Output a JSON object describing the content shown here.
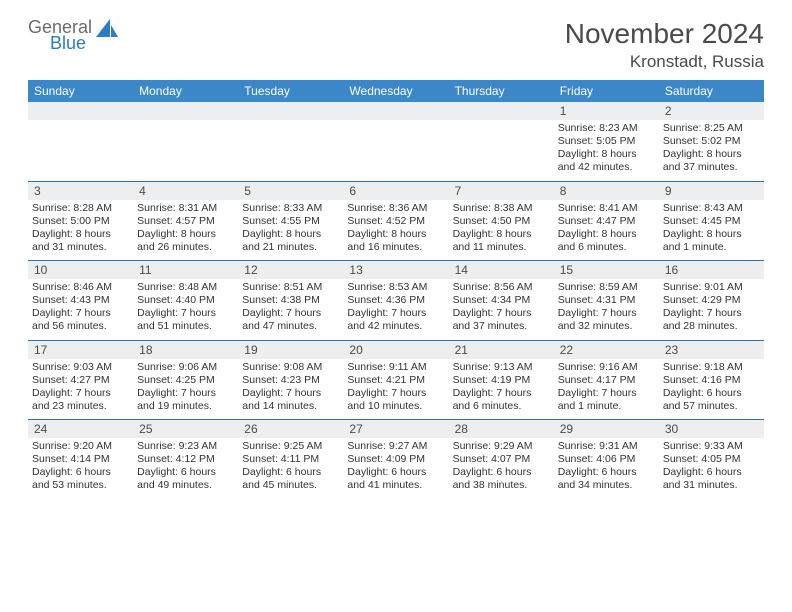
{
  "logo": {
    "word1": "General",
    "word2": "Blue",
    "shape_color": "#2d7cc0",
    "word1_color": "#6b6b6b"
  },
  "header": {
    "title": "November 2024",
    "location": "Kronstadt, Russia"
  },
  "colors": {
    "header_bg": "#3b87c8",
    "header_text": "#ffffff",
    "daynum_bg": "#eceeef",
    "row_border": "#2d6fa8",
    "page_bg": "#ffffff",
    "text": "#333333"
  },
  "weekdays": [
    "Sunday",
    "Monday",
    "Tuesday",
    "Wednesday",
    "Thursday",
    "Friday",
    "Saturday"
  ],
  "calendar": {
    "weeks": [
      [
        {
          "day": "",
          "lines": []
        },
        {
          "day": "",
          "lines": []
        },
        {
          "day": "",
          "lines": []
        },
        {
          "day": "",
          "lines": []
        },
        {
          "day": "",
          "lines": []
        },
        {
          "day": "1",
          "lines": [
            "Sunrise: 8:23 AM",
            "Sunset: 5:05 PM",
            "Daylight: 8 hours and 42 minutes."
          ]
        },
        {
          "day": "2",
          "lines": [
            "Sunrise: 8:25 AM",
            "Sunset: 5:02 PM",
            "Daylight: 8 hours and 37 minutes."
          ]
        }
      ],
      [
        {
          "day": "3",
          "lines": [
            "Sunrise: 8:28 AM",
            "Sunset: 5:00 PM",
            "Daylight: 8 hours and 31 minutes."
          ]
        },
        {
          "day": "4",
          "lines": [
            "Sunrise: 8:31 AM",
            "Sunset: 4:57 PM",
            "Daylight: 8 hours and 26 minutes."
          ]
        },
        {
          "day": "5",
          "lines": [
            "Sunrise: 8:33 AM",
            "Sunset: 4:55 PM",
            "Daylight: 8 hours and 21 minutes."
          ]
        },
        {
          "day": "6",
          "lines": [
            "Sunrise: 8:36 AM",
            "Sunset: 4:52 PM",
            "Daylight: 8 hours and 16 minutes."
          ]
        },
        {
          "day": "7",
          "lines": [
            "Sunrise: 8:38 AM",
            "Sunset: 4:50 PM",
            "Daylight: 8 hours and 11 minutes."
          ]
        },
        {
          "day": "8",
          "lines": [
            "Sunrise: 8:41 AM",
            "Sunset: 4:47 PM",
            "Daylight: 8 hours and 6 minutes."
          ]
        },
        {
          "day": "9",
          "lines": [
            "Sunrise: 8:43 AM",
            "Sunset: 4:45 PM",
            "Daylight: 8 hours and 1 minute."
          ]
        }
      ],
      [
        {
          "day": "10",
          "lines": [
            "Sunrise: 8:46 AM",
            "Sunset: 4:43 PM",
            "Daylight: 7 hours and 56 minutes."
          ]
        },
        {
          "day": "11",
          "lines": [
            "Sunrise: 8:48 AM",
            "Sunset: 4:40 PM",
            "Daylight: 7 hours and 51 minutes."
          ]
        },
        {
          "day": "12",
          "lines": [
            "Sunrise: 8:51 AM",
            "Sunset: 4:38 PM",
            "Daylight: 7 hours and 47 minutes."
          ]
        },
        {
          "day": "13",
          "lines": [
            "Sunrise: 8:53 AM",
            "Sunset: 4:36 PM",
            "Daylight: 7 hours and 42 minutes."
          ]
        },
        {
          "day": "14",
          "lines": [
            "Sunrise: 8:56 AM",
            "Sunset: 4:34 PM",
            "Daylight: 7 hours and 37 minutes."
          ]
        },
        {
          "day": "15",
          "lines": [
            "Sunrise: 8:59 AM",
            "Sunset: 4:31 PM",
            "Daylight: 7 hours and 32 minutes."
          ]
        },
        {
          "day": "16",
          "lines": [
            "Sunrise: 9:01 AM",
            "Sunset: 4:29 PM",
            "Daylight: 7 hours and 28 minutes."
          ]
        }
      ],
      [
        {
          "day": "17",
          "lines": [
            "Sunrise: 9:03 AM",
            "Sunset: 4:27 PM",
            "Daylight: 7 hours and 23 minutes."
          ]
        },
        {
          "day": "18",
          "lines": [
            "Sunrise: 9:06 AM",
            "Sunset: 4:25 PM",
            "Daylight: 7 hours and 19 minutes."
          ]
        },
        {
          "day": "19",
          "lines": [
            "Sunrise: 9:08 AM",
            "Sunset: 4:23 PM",
            "Daylight: 7 hours and 14 minutes."
          ]
        },
        {
          "day": "20",
          "lines": [
            "Sunrise: 9:11 AM",
            "Sunset: 4:21 PM",
            "Daylight: 7 hours and 10 minutes."
          ]
        },
        {
          "day": "21",
          "lines": [
            "Sunrise: 9:13 AM",
            "Sunset: 4:19 PM",
            "Daylight: 7 hours and 6 minutes."
          ]
        },
        {
          "day": "22",
          "lines": [
            "Sunrise: 9:16 AM",
            "Sunset: 4:17 PM",
            "Daylight: 7 hours and 1 minute."
          ]
        },
        {
          "day": "23",
          "lines": [
            "Sunrise: 9:18 AM",
            "Sunset: 4:16 PM",
            "Daylight: 6 hours and 57 minutes."
          ]
        }
      ],
      [
        {
          "day": "24",
          "lines": [
            "Sunrise: 9:20 AM",
            "Sunset: 4:14 PM",
            "Daylight: 6 hours and 53 minutes."
          ]
        },
        {
          "day": "25",
          "lines": [
            "Sunrise: 9:23 AM",
            "Sunset: 4:12 PM",
            "Daylight: 6 hours and 49 minutes."
          ]
        },
        {
          "day": "26",
          "lines": [
            "Sunrise: 9:25 AM",
            "Sunset: 4:11 PM",
            "Daylight: 6 hours and 45 minutes."
          ]
        },
        {
          "day": "27",
          "lines": [
            "Sunrise: 9:27 AM",
            "Sunset: 4:09 PM",
            "Daylight: 6 hours and 41 minutes."
          ]
        },
        {
          "day": "28",
          "lines": [
            "Sunrise: 9:29 AM",
            "Sunset: 4:07 PM",
            "Daylight: 6 hours and 38 minutes."
          ]
        },
        {
          "day": "29",
          "lines": [
            "Sunrise: 9:31 AM",
            "Sunset: 4:06 PM",
            "Daylight: 6 hours and 34 minutes."
          ]
        },
        {
          "day": "30",
          "lines": [
            "Sunrise: 9:33 AM",
            "Sunset: 4:05 PM",
            "Daylight: 6 hours and 31 minutes."
          ]
        }
      ]
    ]
  }
}
